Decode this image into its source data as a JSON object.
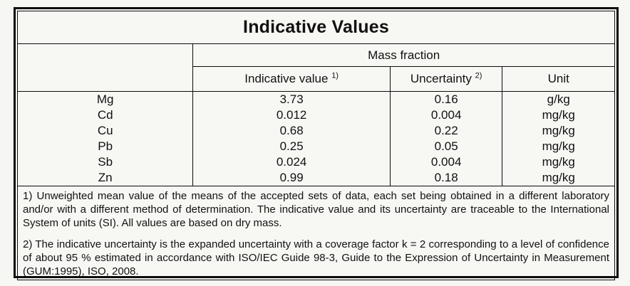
{
  "title": "Indicative Values",
  "table": {
    "group_header": "Mass fraction",
    "columns": {
      "indicative_value": {
        "label": "Indicative value",
        "sup": "1)"
      },
      "uncertainty": {
        "label": "Uncertainty",
        "sup": "2)"
      },
      "unit": {
        "label": "Unit"
      }
    },
    "rows": [
      {
        "element": "Mg",
        "value": "3.73",
        "uncertainty": "0.16",
        "unit": "g/kg"
      },
      {
        "element": "Cd",
        "value": "0.012",
        "uncertainty": "0.004",
        "unit": "mg/kg"
      },
      {
        "element": "Cu",
        "value": "0.68",
        "uncertainty": "0.22",
        "unit": "mg/kg"
      },
      {
        "element": "Pb",
        "value": "0.25",
        "uncertainty": "0.05",
        "unit": "mg/kg"
      },
      {
        "element": "Sb",
        "value": "0.024",
        "uncertainty": "0.004",
        "unit": "mg/kg"
      },
      {
        "element": "Zn",
        "value": "0.99",
        "uncertainty": "0.18",
        "unit": "mg/kg"
      }
    ]
  },
  "footnotes": [
    "1) Unweighted mean value of the means of the accepted sets of data, each set being obtained in a different laboratory and/or with a different method of determination. The indicative value and its uncertainty are traceable to the International System of units (SI). All values are based on dry mass.",
    "2) The indicative uncertainty is the expanded uncertainty with a coverage factor k = 2 corresponding to a level of confidence of about 95 % estimated in accordance with ISO/IEC Guide 98-3, Guide to the Expression of Uncertainty in Measurement (GUM:1995), ISO, 2008."
  ],
  "colors": {
    "border": "#0b0b0b",
    "background": "#f6f6f3",
    "text": "#111111"
  }
}
